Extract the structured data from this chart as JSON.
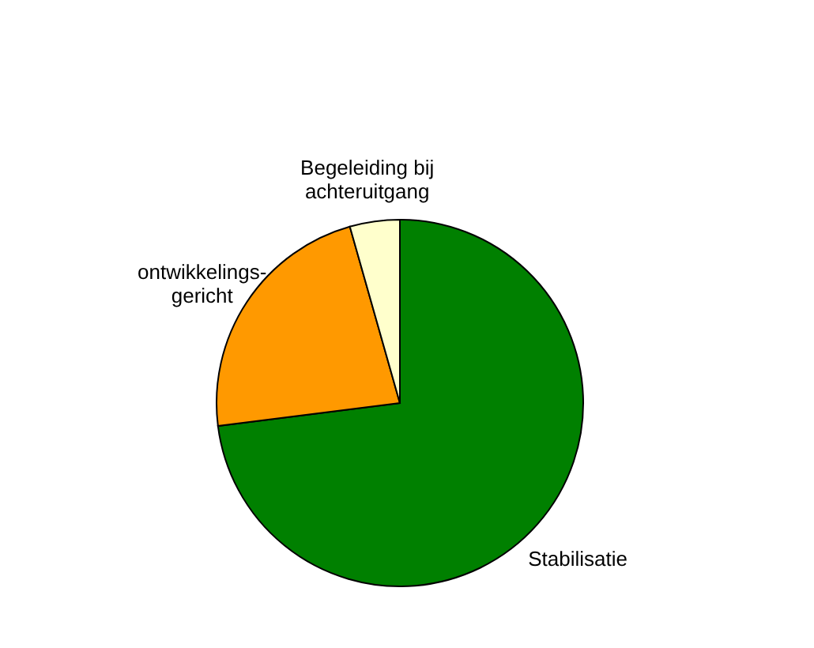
{
  "chart_data": {
    "type": "pie",
    "categories": [
      "Stabilisatie",
      "ontwikkelings-\ngericht",
      "Begeleiding bij\nachteruitgang"
    ],
    "values": [
      73,
      22.6,
      4.4
    ],
    "colors": [
      "#008000",
      "#ff9900",
      "#ffffcc"
    ]
  }
}
